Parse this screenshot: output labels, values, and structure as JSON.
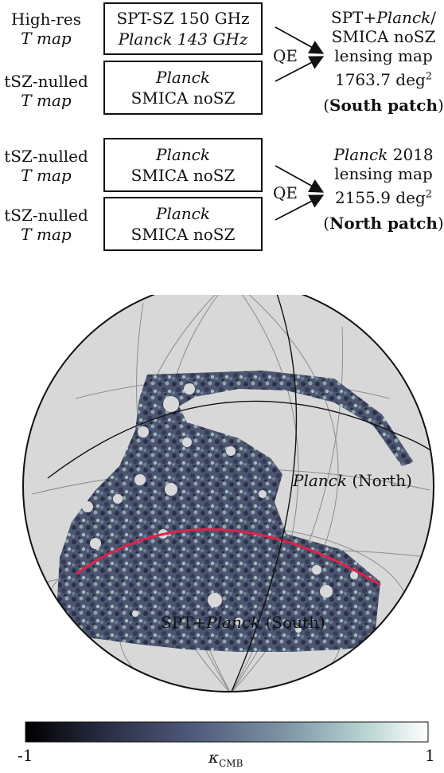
{
  "top_row": {
    "input1_label": [
      "High-res",
      "T map"
    ],
    "input1_box": [
      "SPT-SZ 150 GHz",
      "Planck 143 GHz"
    ],
    "input2_label": [
      "tSZ-nulled",
      "T map"
    ],
    "input2_box": [
      "Planck",
      "SMICA noSZ"
    ],
    "qe": "QE",
    "output": {
      "line1_a": "SPT+",
      "line1_b": "Planck",
      "line1_c": "/",
      "line2": "SMICA noSZ",
      "line3": "lensing map",
      "area": "1763.7 deg",
      "area_sup": "2",
      "patch_open": "(",
      "patch": "South patch",
      "patch_close": ")"
    }
  },
  "bottom_row": {
    "input1_label": [
      "tSZ-nulled",
      "T map"
    ],
    "input1_box": [
      "Planck",
      "SMICA noSZ"
    ],
    "input2_label": [
      "tSZ-nulled",
      "T map"
    ],
    "input2_box": [
      "Planck",
      "SMICA noSZ"
    ],
    "qe": "QE",
    "output": {
      "line1_a": "Planck",
      "line1_b": " 2018",
      "line2": "lensing map",
      "area": "2155.9 deg",
      "area_sup": "2",
      "patch_open": "(",
      "patch": "North patch",
      "patch_close": ")"
    }
  },
  "sky_map": {
    "label_north_it": "Planck",
    "label_north": " (North)",
    "label_south_a": "SPT+",
    "label_south_it": "Planck",
    "label_south_b": " (South)",
    "boundary_color": "#e0224a",
    "background_color": "#d8d8d8"
  },
  "colorbar": {
    "min_label": "-1",
    "max_label": "1",
    "quantity": "κ",
    "quantity_sub": "CMB",
    "colors": [
      "#000000",
      "#2a2e45",
      "#505a7a",
      "#7f96a6",
      "#b9d6d2",
      "#ffffff"
    ]
  }
}
